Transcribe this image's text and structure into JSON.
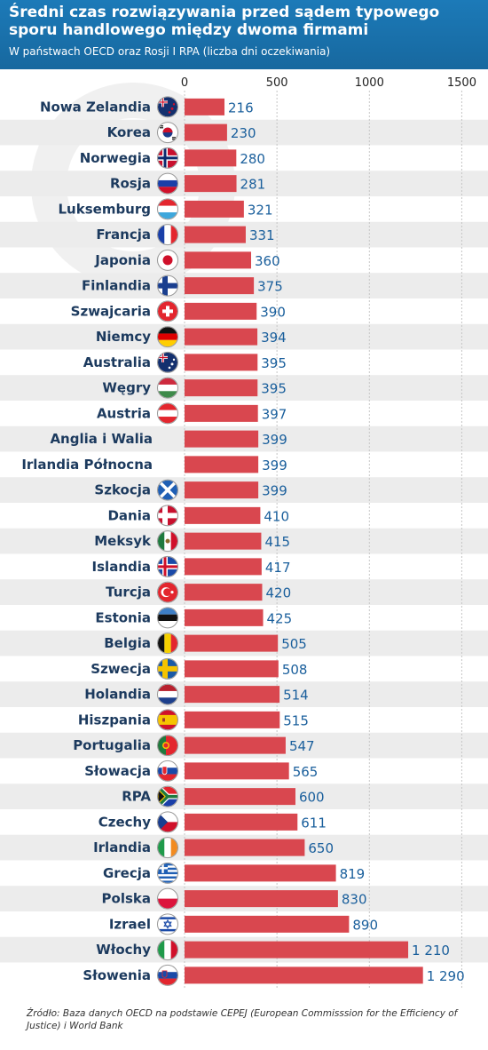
{
  "header": {
    "title": "Średni czas rozwiązywania przed sądem typowego sporu handlowego między dwoma firmami",
    "subtitle": "W państwach OECD oraz Rosji I RPA (liczba dni oczekiwania)"
  },
  "colors": {
    "header_bg": "#1a72ad",
    "bar": "#d9474f",
    "value_text": "#1a5f9c",
    "label_text": "#1c3a5e",
    "stripe": "#ececec"
  },
  "chart_data": {
    "type": "bar",
    "orientation": "horizontal",
    "title": "Średni czas rozwiązywania przed sądem typowego sporu handlowego między dwoma firmami",
    "subtitle": "W państwach OECD oraz Rosji I RPA (liczba dni oczekiwania)",
    "xlim": [
      0,
      1500
    ],
    "xticks": [
      0,
      500,
      1000,
      1500
    ],
    "xtick_labels": [
      "0",
      "500",
      "1000",
      "1500"
    ],
    "grid": true,
    "categories": [
      "Nowa Zelandia",
      "Korea",
      "Norwegia",
      "Rosja",
      "Luksemburg",
      "Francja",
      "Japonia",
      "Finlandia",
      "Szwajcaria",
      "Niemcy",
      "Australia",
      "Węgry",
      "Austria",
      "Anglia i Walia",
      "Irlandia Północna",
      "Szkocja",
      "Dania",
      "Meksyk",
      "Islandia",
      "Turcja",
      "Estonia",
      "Belgia",
      "Szwecja",
      "Holandia",
      "Hiszpania",
      "Portugalia",
      "Słowacja",
      "RPA",
      "Czechy",
      "Irlandia",
      "Grecja",
      "Polska",
      "Izrael",
      "Włochy",
      "Słowenia"
    ],
    "values": [
      216,
      230,
      280,
      281,
      321,
      331,
      360,
      375,
      390,
      394,
      395,
      395,
      397,
      399,
      399,
      399,
      410,
      415,
      417,
      420,
      425,
      505,
      508,
      514,
      515,
      547,
      565,
      600,
      611,
      650,
      819,
      830,
      890,
      1210,
      1290
    ],
    "value_labels": [
      "216",
      "230",
      "280",
      "281",
      "321",
      "331",
      "360",
      "375",
      "390",
      "394",
      "395",
      "395",
      "397",
      "399",
      "399",
      "399",
      "410",
      "415",
      "417",
      "420",
      "425",
      "505",
      "508",
      "514",
      "515",
      "547",
      "565",
      "600",
      "611",
      "650",
      "819",
      "830",
      "890",
      "1 210",
      "1 290"
    ],
    "flags": [
      "new-zealand-flag-icon",
      "south-korea-flag-icon",
      "norway-flag-icon",
      "russia-flag-icon",
      "luxembourg-flag-icon",
      "france-flag-icon",
      "japan-flag-icon",
      "finland-flag-icon",
      "switzerland-flag-icon",
      "germany-flag-icon",
      "australia-flag-icon",
      "hungary-flag-icon",
      "austria-flag-icon",
      null,
      null,
      "scotland-flag-icon",
      "denmark-flag-icon",
      "mexico-flag-icon",
      "iceland-flag-icon",
      "turkey-flag-icon",
      "estonia-flag-icon",
      "belgium-flag-icon",
      "sweden-flag-icon",
      "netherlands-flag-icon",
      "spain-flag-icon",
      "portugal-flag-icon",
      "slovakia-flag-icon",
      "south-africa-flag-icon",
      "czech-flag-icon",
      "ireland-flag-icon",
      "greece-flag-icon",
      "poland-flag-icon",
      "israel-flag-icon",
      "italy-flag-icon",
      "slovenia-flag-icon"
    ]
  },
  "footer": {
    "source": "Źródło: Baza danych OECD na podstawie CEPEJ (European Commisssion for the Efficiency of Justice) i World Bank"
  }
}
